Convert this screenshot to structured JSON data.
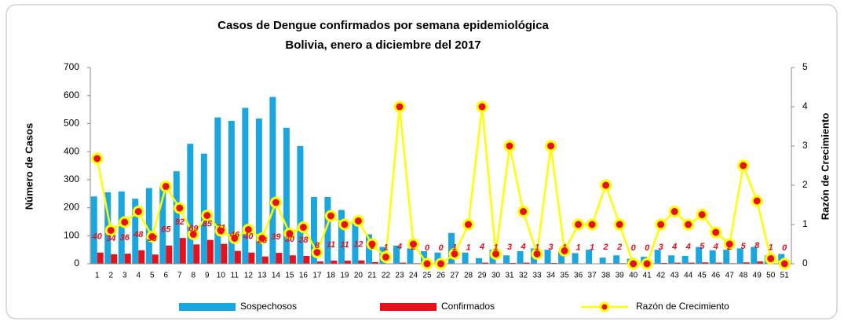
{
  "chart_data": {
    "type": "bar",
    "title": "Casos de Dengue confirmados por semana epidemiológica",
    "subtitle": "Bolivia, enero a diciembre del 2017",
    "y_label": "Número de Casos",
    "y2_label": "Razón de Crecimiento",
    "categories": [
      "1",
      "2",
      "3",
      "4",
      "5",
      "6",
      "7",
      "8",
      "9",
      "10",
      "11",
      "12",
      "13",
      "14",
      "15",
      "16",
      "17",
      "18",
      "19",
      "20",
      "21",
      "22",
      "23",
      "24",
      "25",
      "26",
      "27",
      "28",
      "29",
      "30",
      "31",
      "32",
      "33",
      "34",
      "35",
      "36",
      "37",
      "38",
      "39",
      "40",
      "41",
      "42",
      "43",
      "44",
      "45",
      "46",
      "47",
      "48",
      "49",
      "50",
      "51"
    ],
    "series": [
      {
        "name": "Sospechosos",
        "type": "bar",
        "color": "#1aa7e0",
        "values": [
          240,
          255,
          258,
          232,
          270,
          275,
          330,
          428,
          393,
          522,
          510,
          556,
          518,
          595,
          485,
          420,
          238,
          238,
          192,
          150,
          105,
          60,
          65,
          55,
          45,
          40,
          110,
          40,
          20,
          50,
          30,
          45,
          55,
          50,
          42,
          38,
          50,
          22,
          30,
          18,
          25,
          50,
          30,
          28,
          60,
          48,
          50,
          55,
          60,
          30,
          35
        ]
      },
      {
        "name": "Confirmados",
        "type": "bar",
        "color": "#e8101a",
        "labels": true,
        "values": [
          40,
          34,
          36,
          48,
          33,
          65,
          92,
          69,
          85,
          71,
          46,
          40,
          26,
          39,
          30,
          28,
          8,
          11,
          11,
          12,
          6,
          1,
          4,
          2,
          0,
          0,
          1,
          1,
          4,
          1,
          3,
          4,
          1,
          3,
          1,
          1,
          1,
          2,
          2,
          0,
          0,
          3,
          4,
          4,
          5,
          4,
          2,
          5,
          8,
          1,
          0
        ]
      },
      {
        "name": "Razón de Crecimiento",
        "type": "line",
        "axis": "y2",
        "color": "#ffff00",
        "marker_color": "#e8101a",
        "values": [
          2.68,
          0.85,
          1.06,
          1.33,
          0.69,
          1.97,
          1.42,
          0.75,
          1.23,
          0.84,
          0.65,
          0.87,
          0.65,
          1.56,
          0.77,
          0.93,
          0.29,
          1.22,
          1.0,
          1.09,
          0.5,
          0.17,
          4,
          0.5,
          0,
          0,
          0.25,
          1,
          4,
          0.25,
          3,
          1.33,
          0.25,
          3,
          0.33,
          1,
          1,
          2,
          1,
          0,
          0,
          1,
          1.33,
          1,
          1.25,
          0.8,
          0.5,
          2.5,
          1.6,
          0.13,
          0
        ]
      }
    ],
    "ylim": [
      0,
      700
    ],
    "yticks": [
      0,
      100,
      200,
      300,
      400,
      500,
      600,
      700
    ],
    "y2lim": [
      0,
      5
    ],
    "y2ticks": [
      0,
      1,
      2,
      3,
      4,
      5
    ],
    "legend": "bottom"
  }
}
